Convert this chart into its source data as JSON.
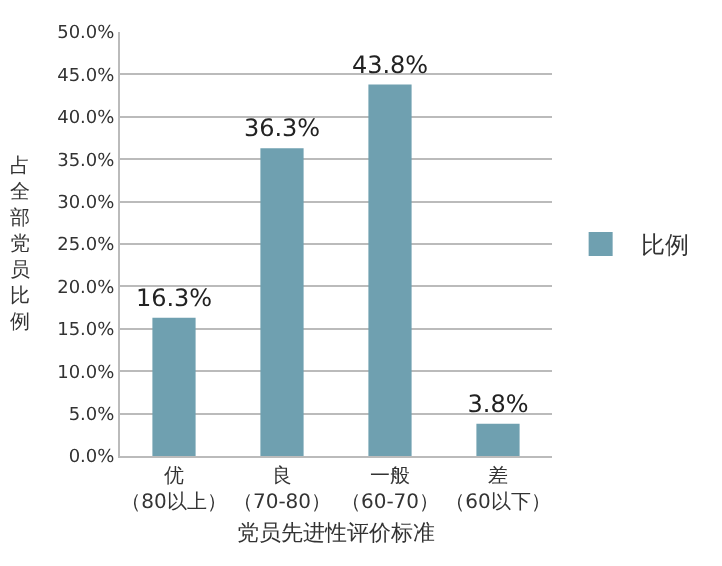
{
  "chart_data": {
    "type": "bar",
    "xlabel": "党员先进性评价标准",
    "ylabel": "占全部党员比例",
    "categories": [
      "优（80以上）",
      "良（70-80）",
      "一般（60-70）",
      "差（60以下）"
    ],
    "series": [
      {
        "name": "比例",
        "color": "#6fa0b0",
        "values": [
          16.3,
          36.3,
          43.8,
          3.8
        ],
        "value_labels": [
          "16.3%",
          "36.3%",
          "43.8%",
          "3.8%"
        ]
      }
    ],
    "ylim": [
      0,
      50
    ],
    "yticks": [
      {
        "value": 0,
        "label": "0.0%"
      },
      {
        "value": 5,
        "label": "5.0%"
      },
      {
        "value": 10,
        "label": "10.0%"
      },
      {
        "value": 15,
        "label": "15.0%"
      },
      {
        "value": 20,
        "label": "20.0%"
      },
      {
        "value": 25,
        "label": "25.0%"
      },
      {
        "value": 30,
        "label": "30.0%"
      },
      {
        "value": 35,
        "label": "35.0%"
      },
      {
        "value": 40,
        "label": "40.0%"
      },
      {
        "value": 45,
        "label": "45.0%"
      },
      {
        "value": 50,
        "label": "50.0%"
      }
    ],
    "grid": "y",
    "legend": "right"
  }
}
